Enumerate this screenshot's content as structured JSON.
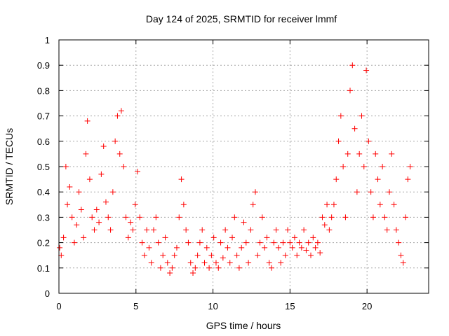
{
  "chart_data": {
    "type": "scatter",
    "title": "Day 124 of 2025, SRMTID for receiver lmmf",
    "xlabel": "GPS time / hours",
    "ylabel": "SRMTID / TECUs",
    "xlim": [
      0,
      24
    ],
    "ylim": [
      0,
      1
    ],
    "xticks": [
      0,
      5,
      10,
      15,
      20
    ],
    "xtick_labels": [
      "0",
      "5",
      "10",
      "15",
      "20"
    ],
    "yticks": [
      0,
      0.1,
      0.2,
      0.3,
      0.4,
      0.5,
      0.6,
      0.7,
      0.8,
      0.9,
      1
    ],
    "ytick_labels": [
      "0",
      "0.1",
      "0.2",
      "0.3",
      "0.4",
      "0.5",
      "0.6",
      "0.7",
      "0.8",
      "0.9",
      "1"
    ],
    "grid": true,
    "marker": "+",
    "series": [
      {
        "name": "SRMTID",
        "color": "#ff0000",
        "x": [
          0.05,
          0.15,
          0.3,
          0.45,
          0.55,
          0.7,
          0.85,
          1.0,
          1.15,
          1.3,
          1.45,
          1.6,
          1.75,
          1.85,
          2.0,
          2.15,
          2.3,
          2.45,
          2.6,
          2.75,
          2.9,
          3.05,
          3.2,
          3.35,
          3.5,
          3.65,
          3.8,
          3.95,
          4.05,
          4.2,
          4.35,
          4.5,
          4.65,
          4.8,
          4.95,
          5.1,
          5.25,
          5.4,
          5.55,
          5.7,
          5.85,
          6.0,
          6.15,
          6.3,
          6.45,
          6.6,
          6.75,
          6.9,
          7.05,
          7.2,
          7.35,
          7.5,
          7.65,
          7.8,
          7.95,
          8.1,
          8.25,
          8.4,
          8.55,
          8.7,
          8.85,
          9.0,
          9.15,
          9.3,
          9.45,
          9.6,
          9.75,
          9.9,
          10.05,
          10.2,
          10.35,
          10.5,
          10.65,
          10.8,
          10.95,
          11.1,
          11.25,
          11.4,
          11.55,
          11.7,
          11.85,
          12.0,
          12.15,
          12.3,
          12.45,
          12.6,
          12.75,
          12.9,
          13.05,
          13.2,
          13.35,
          13.5,
          13.65,
          13.8,
          13.95,
          14.1,
          14.25,
          14.4,
          14.55,
          14.7,
          14.85,
          15.0,
          15.15,
          15.3,
          15.45,
          15.6,
          15.75,
          15.9,
          16.05,
          16.2,
          16.35,
          16.5,
          16.65,
          16.8,
          16.95,
          17.1,
          17.25,
          17.4,
          17.55,
          17.7,
          17.85,
          18.0,
          18.15,
          18.3,
          18.45,
          18.6,
          18.75,
          18.9,
          19.05,
          19.2,
          19.35,
          19.5,
          19.65,
          19.8,
          19.95,
          20.1,
          20.25,
          20.4,
          20.55,
          20.7,
          20.85,
          21.0,
          21.15,
          21.3,
          21.45,
          21.6,
          21.75,
          21.9,
          22.05,
          22.2,
          22.35,
          22.5,
          22.65,
          22.8
        ],
        "y": [
          0.18,
          0.15,
          0.22,
          0.5,
          0.35,
          0.42,
          0.3,
          0.2,
          0.27,
          0.4,
          0.33,
          0.22,
          0.55,
          0.68,
          0.45,
          0.3,
          0.25,
          0.33,
          0.28,
          0.47,
          0.58,
          0.36,
          0.3,
          0.25,
          0.4,
          0.6,
          0.7,
          0.55,
          0.72,
          0.5,
          0.3,
          0.22,
          0.28,
          0.25,
          0.35,
          0.48,
          0.3,
          0.2,
          0.15,
          0.25,
          0.18,
          0.12,
          0.25,
          0.3,
          0.2,
          0.1,
          0.15,
          0.22,
          0.12,
          0.08,
          0.1,
          0.15,
          0.18,
          0.3,
          0.45,
          0.35,
          0.25,
          0.2,
          0.12,
          0.08,
          0.1,
          0.15,
          0.2,
          0.25,
          0.12,
          0.18,
          0.1,
          0.15,
          0.22,
          0.12,
          0.1,
          0.2,
          0.14,
          0.25,
          0.18,
          0.12,
          0.22,
          0.3,
          0.15,
          0.1,
          0.18,
          0.28,
          0.2,
          0.12,
          0.25,
          0.35,
          0.4,
          0.15,
          0.2,
          0.3,
          0.18,
          0.22,
          0.12,
          0.1,
          0.2,
          0.25,
          0.18,
          0.12,
          0.2,
          0.15,
          0.25,
          0.2,
          0.18,
          0.22,
          0.15,
          0.2,
          0.18,
          0.25,
          0.17,
          0.2,
          0.15,
          0.22,
          0.18,
          0.2,
          0.16,
          0.3,
          0.27,
          0.35,
          0.25,
          0.3,
          0.35,
          0.45,
          0.6,
          0.7,
          0.5,
          0.3,
          0.55,
          0.8,
          0.9,
          0.65,
          0.4,
          0.55,
          0.7,
          0.5,
          0.88,
          0.6,
          0.4,
          0.3,
          0.55,
          0.45,
          0.35,
          0.5,
          0.3,
          0.25,
          0.4,
          0.55,
          0.35,
          0.25,
          0.2,
          0.15,
          0.12,
          0.3,
          0.45,
          0.5
        ]
      }
    ]
  }
}
